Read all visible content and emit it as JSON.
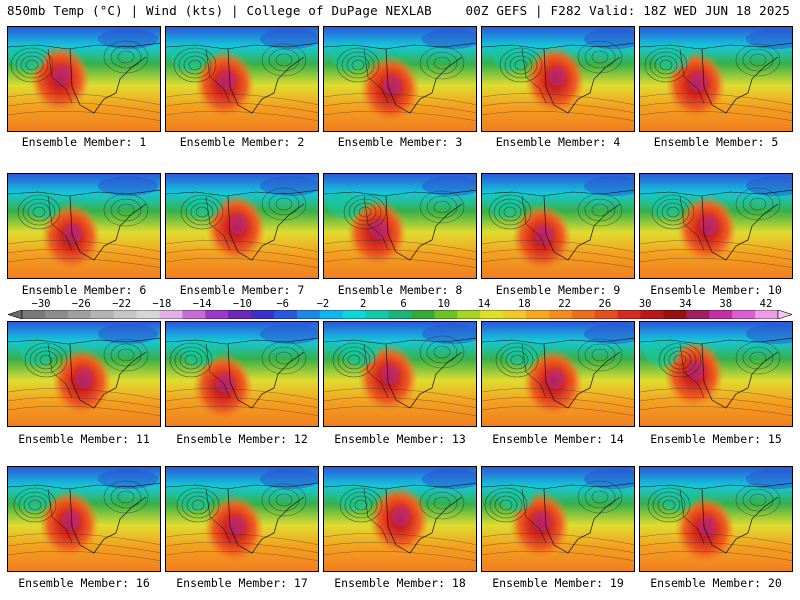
{
  "header": {
    "left": "850mb Temp (°C) | Wind (kts) | College of DuPage NEXLAB",
    "right": "00Z GEFS | F282 Valid: 18Z WED JUN 18 2025"
  },
  "members": [
    {
      "label": "Ensemble Member: 1"
    },
    {
      "label": "Ensemble Member: 2"
    },
    {
      "label": "Ensemble Member: 3"
    },
    {
      "label": "Ensemble Member: 4"
    },
    {
      "label": "Ensemble Member: 5"
    },
    {
      "label": "Ensemble Member: 6"
    },
    {
      "label": "Ensemble Member: 7"
    },
    {
      "label": "Ensemble Member: 8"
    },
    {
      "label": "Ensemble Member: 9"
    },
    {
      "label": "Ensemble Member: 10"
    },
    {
      "label": "Ensemble Member: 11"
    },
    {
      "label": "Ensemble Member: 12"
    },
    {
      "label": "Ensemble Member: 13"
    },
    {
      "label": "Ensemble Member: 14"
    },
    {
      "label": "Ensemble Member: 15"
    },
    {
      "label": "Ensemble Member: 16"
    },
    {
      "label": "Ensemble Member: 17"
    },
    {
      "label": "Ensemble Member: 18"
    },
    {
      "label": "Ensemble Member: 19"
    },
    {
      "label": "Ensemble Member: 20"
    }
  ],
  "colorbar": {
    "ticks": [
      "−30",
      "−26",
      "−22",
      "−18",
      "−14",
      "−10",
      "−6",
      "−2",
      "2",
      "6",
      "10",
      "14",
      "18",
      "22",
      "26",
      "30",
      "34",
      "38",
      "42"
    ],
    "colors": [
      "#7a7a7a",
      "#8c8c8c",
      "#a0a0a0",
      "#b4b4b4",
      "#c6c6c6",
      "#d6d6d6",
      "#e0b0e6",
      "#c86ad8",
      "#9a38c8",
      "#6a28b8",
      "#3a32c8",
      "#2a58dc",
      "#1e88ea",
      "#14b4f0",
      "#10d4dc",
      "#14c8a8",
      "#1cb478",
      "#38a838",
      "#70c028",
      "#a8d428",
      "#e0e028",
      "#f0c828",
      "#f4a820",
      "#f48c20",
      "#ee6e20",
      "#e44e20",
      "#d42a20",
      "#b81818",
      "#981010",
      "#a02060",
      "#c030a0",
      "#d860d0",
      "#ec9ee6"
    ]
  }
}
